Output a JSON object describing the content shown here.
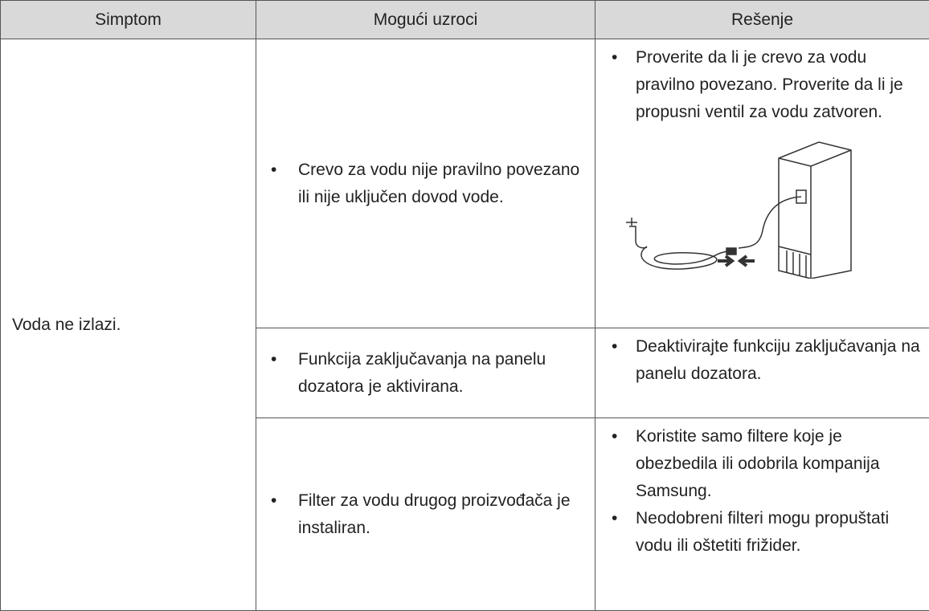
{
  "table": {
    "header": [
      "Simptom",
      "Mogući uzroci",
      "Rešenje"
    ],
    "symptom": "Voda ne izlazi.",
    "rows": [
      {
        "cause": "Crevo za vodu nije pravilno povezano ili nije uključen dovod vode.",
        "solutions": [
          "Proverite da li je crevo za vodu pravilno povezano. Proverite da li je propusni ventil za vodu zatvoren."
        ]
      },
      {
        "cause": "Funkcija zaključavanja na panelu dozatora je aktivirana.",
        "solutions": [
          "Deaktivirajte funkciju zaključavanja na panelu dozatora."
        ]
      },
      {
        "cause": "Filter za vodu drugog proizvođača je instaliran.",
        "solutions": [
          "Koristite samo filtere koje je obezbedila ili odobrila kompanija Samsung.",
          "Neodobreni filteri mogu propuštati vodu ili oštetiti frižider."
        ]
      }
    ]
  }
}
